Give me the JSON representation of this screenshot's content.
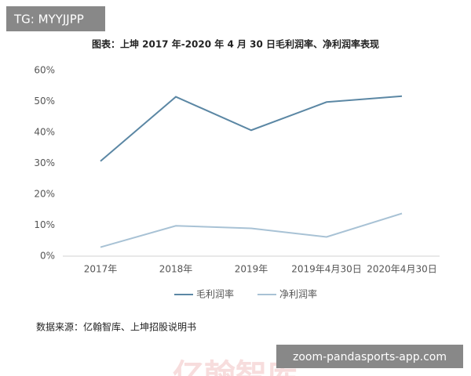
{
  "chart_data": {
    "type": "line",
    "title": "图表：上坤 2017 年-2020 年 4 月 30 日毛利润率、净利润率表现",
    "categories": [
      "2017年",
      "2018年",
      "2019年",
      "2019年4月30日",
      "2020年4月30日"
    ],
    "series": [
      {
        "name": "毛利润率",
        "color": "#5b87a4",
        "values": [
          30.7,
          51.5,
          40.7,
          49.8,
          51.7
        ]
      },
      {
        "name": "净利润率",
        "color": "#a8c2d5",
        "values": [
          2.9,
          9.8,
          9.0,
          6.2,
          13.8
        ]
      }
    ],
    "ylim": [
      0,
      60
    ],
    "yticks": [
      {
        "value": 0,
        "label": "0%"
      },
      {
        "value": 10,
        "label": "10%"
      },
      {
        "value": 20,
        "label": "20%"
      },
      {
        "value": 30,
        "label": "30%"
      },
      {
        "value": 40,
        "label": "40%"
      },
      {
        "value": 50,
        "label": "50%"
      },
      {
        "value": 60,
        "label": "60%"
      }
    ],
    "grid": false,
    "legend": "bottom",
    "source": "数据来源：亿翰智库、上坤招股说明书",
    "watermarks": [
      "TG: MYYJJPP",
      "zoom-pandasports-app.com",
      "亿翰智库"
    ]
  }
}
